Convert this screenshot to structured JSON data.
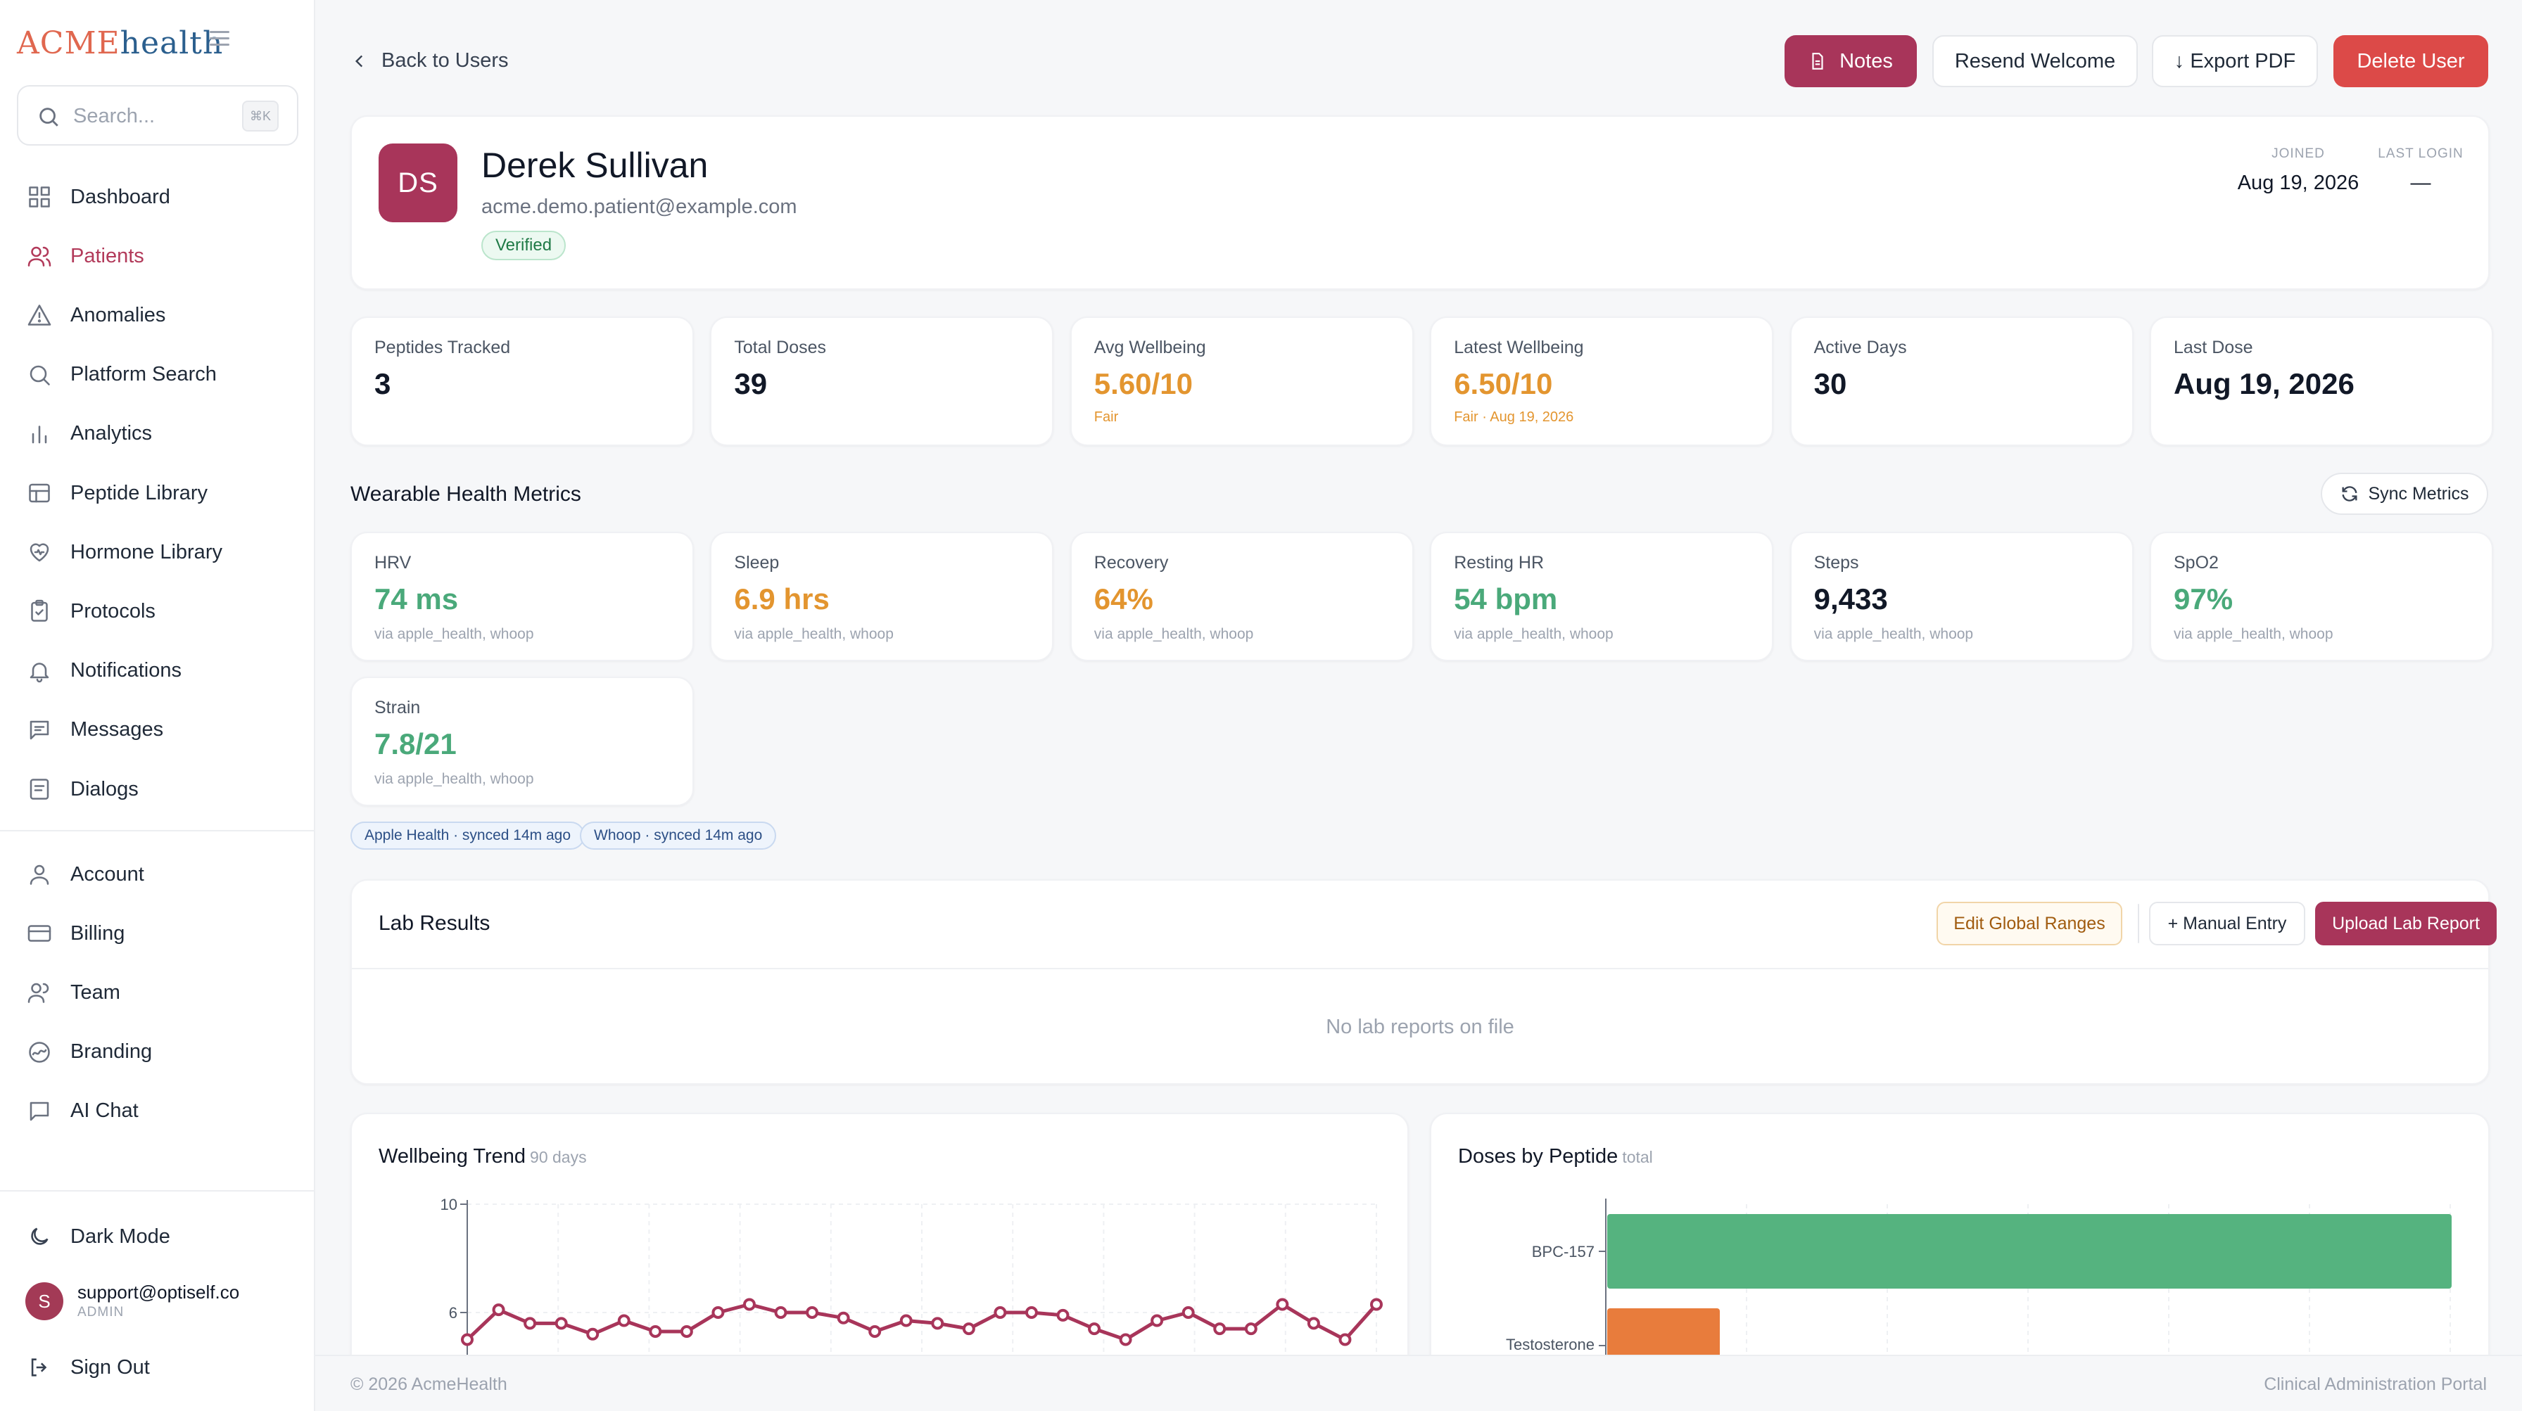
{
  "sidebar": {
    "logo_a": "ACME",
    "logo_b": "health",
    "search_placeholder": "Search...",
    "search_kbd": "⌘K",
    "items": [
      {
        "label": "Dashboard",
        "icon": "grid-icon"
      },
      {
        "label": "Patients",
        "icon": "users-icon"
      },
      {
        "label": "Anomalies",
        "icon": "warning-icon"
      },
      {
        "label": "Platform Search",
        "icon": "search-icon"
      },
      {
        "label": "Analytics",
        "icon": "bar-chart-icon"
      },
      {
        "label": "Peptide Library",
        "icon": "library-icon"
      },
      {
        "label": "Hormone Library",
        "icon": "heart-icon"
      },
      {
        "label": "Protocols",
        "icon": "clipboard-icon"
      },
      {
        "label": "Notifications",
        "icon": "bell-icon"
      },
      {
        "label": "Messages",
        "icon": "message-icon"
      },
      {
        "label": "Dialogs",
        "icon": "dialog-icon"
      }
    ],
    "items2": [
      {
        "label": "Account",
        "icon": "user-icon"
      },
      {
        "label": "Billing",
        "icon": "card-icon"
      },
      {
        "label": "Team",
        "icon": "team-icon"
      },
      {
        "label": "Branding",
        "icon": "branding-icon"
      },
      {
        "label": "AI Chat",
        "icon": "chat-icon"
      }
    ],
    "dark_mode": "Dark Mode",
    "user_initial": "S",
    "user_email": "support@optiself.co",
    "user_role": "ADMIN",
    "sign_out": "Sign Out"
  },
  "header": {
    "back": "Back to Users",
    "notes": "Notes",
    "resend": "Resend Welcome",
    "export": "↓ Export PDF",
    "delete": "Delete User"
  },
  "profile": {
    "initials": "DS",
    "name": "Derek Sullivan",
    "email": "acme.demo.patient@example.com",
    "verified": "Verified",
    "joined_label": "JOINED",
    "joined": "Aug 19, 2026",
    "last_login_label": "LAST LOGIN",
    "last_login": "—"
  },
  "stats": [
    {
      "label": "Peptides Tracked",
      "value": "3",
      "sub": ""
    },
    {
      "label": "Total Doses",
      "value": "39",
      "sub": ""
    },
    {
      "label": "Avg Wellbeing",
      "value": "5.60/10",
      "sub": "Fair"
    },
    {
      "label": "Latest Wellbeing",
      "value": "6.50/10",
      "sub": "Fair · Aug 19, 2026"
    },
    {
      "label": "Active Days",
      "value": "30",
      "sub": ""
    },
    {
      "label": "Last Dose",
      "value": "Aug 19, 2026",
      "sub": ""
    }
  ],
  "colors": {
    "accent": "#a8355a",
    "green": "#4aa97a",
    "orange": "#e3952f",
    "danger": "#dc4a48"
  },
  "wearables": {
    "title": "Wearable Health Metrics",
    "sync": "Sync Metrics",
    "metrics": [
      {
        "label": "HRV",
        "value": "74 ms",
        "sub": "via apple_health, whoop",
        "color": "#4aa97a"
      },
      {
        "label": "Sleep",
        "value": "6.9 hrs",
        "sub": "via apple_health, whoop",
        "color": "#e3952f"
      },
      {
        "label": "Recovery",
        "value": "64%",
        "sub": "via apple_health, whoop",
        "color": "#e3952f"
      },
      {
        "label": "Resting HR",
        "value": "54 bpm",
        "sub": "via apple_health, whoop",
        "color": "#4aa97a"
      },
      {
        "label": "Steps",
        "value": "9,433",
        "sub": "via apple_health, whoop",
        "color": "#111827"
      },
      {
        "label": "SpO2",
        "value": "97%",
        "sub": "via apple_health, whoop",
        "color": "#4aa97a"
      },
      {
        "label": "Strain",
        "value": "7.8/21",
        "sub": "via apple_health, whoop",
        "color": "#4aa97a"
      }
    ],
    "sources": [
      "Apple Health · synced 14m ago",
      "Whoop · synced 14m ago"
    ]
  },
  "labs": {
    "title": "Lab Results",
    "edit": "Edit Global Ranges",
    "manual": "+ Manual Entry",
    "upload": "Upload Lab Report",
    "empty": "No lab reports on file"
  },
  "chart_data": [
    {
      "type": "line",
      "title": "Wellbeing Trend",
      "subtitle": "90 days",
      "yticks": [
        "10",
        "6"
      ],
      "ylim": [
        2,
        10
      ],
      "values": [
        5.0,
        6.1,
        5.6,
        5.6,
        5.2,
        5.7,
        5.3,
        5.3,
        6.0,
        6.3,
        6.0,
        6.0,
        5.8,
        5.3,
        5.7,
        5.6,
        5.4,
        6.0,
        6.0,
        5.9,
        5.4,
        5.0,
        5.7,
        6.0,
        5.4,
        5.4,
        6.3,
        5.6,
        5.0,
        6.3
      ]
    },
    {
      "type": "bar",
      "orientation": "horizontal",
      "title": "Doses by Peptide",
      "subtitle": "total",
      "categories": [
        "BPC-157",
        "Testosterone Cypionate"
      ],
      "values": [
        30,
        4
      ],
      "xlim": [
        0,
        30
      ],
      "colors": [
        "#55b37f",
        "#e87c3c"
      ]
    }
  ],
  "footer": {
    "left": "© 2026 AcmeHealth",
    "right": "Clinical Administration Portal"
  }
}
